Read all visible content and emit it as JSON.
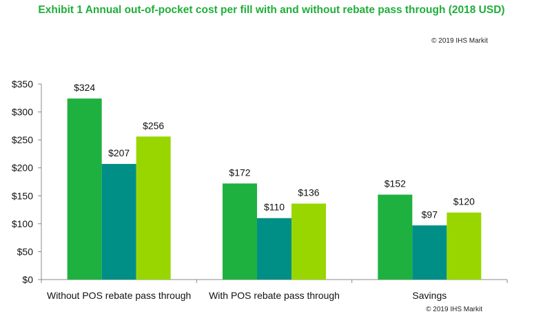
{
  "chart_data": {
    "type": "bar",
    "title": "Exhibit 1 Annual out-of-pocket cost per fill with and without rebate pass through (2018 USD)",
    "copyright_top": "© 2019 IHS Markit",
    "copyright_bottom": "© 2019 IHS Markit",
    "categories": [
      "Without POS rebate pass through",
      "With POS rebate pass through",
      "Savings"
    ],
    "series": [
      {
        "values": [
          324,
          172,
          152
        ],
        "color": "#1fb140",
        "labels": [
          "$324",
          "$172",
          "$152"
        ]
      },
      {
        "values": [
          207,
          110,
          97
        ],
        "color": "#008f86",
        "labels": [
          "$207",
          "$110",
          "$97"
        ]
      },
      {
        "values": [
          256,
          136,
          120
        ],
        "color": "#99d600",
        "labels": [
          "$256",
          "$136",
          "$120"
        ]
      }
    ],
    "yticks": [
      0,
      50,
      100,
      150,
      200,
      250,
      300,
      350
    ],
    "ytick_labels": [
      "$0",
      "$50",
      "$100",
      "$150",
      "$200",
      "$250",
      "$300",
      "$350"
    ],
    "ylim": [
      0,
      350
    ],
    "grid": false,
    "legend": "none"
  }
}
